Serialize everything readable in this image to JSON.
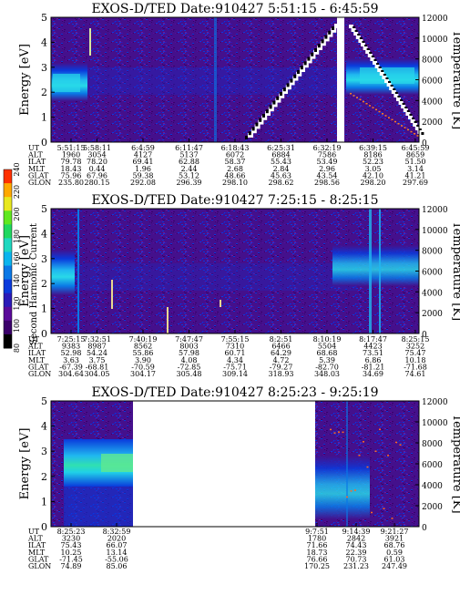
{
  "colorbar": {
    "label": "Second Harmonic Current",
    "ticks": [
      "80",
      "100",
      "120",
      "140",
      "160",
      "180",
      "200",
      "220",
      "240"
    ],
    "colors": [
      "#000000",
      "#3a006a",
      "#5a0a9a",
      "#2a1ab8",
      "#0a3adc",
      "#0a78e6",
      "#0ab4ee",
      "#20d8c0",
      "#20d860",
      "#60e820",
      "#e8e820",
      "#ffa800",
      "#ff3000"
    ]
  },
  "chart_data": [
    {
      "type": "heatmap",
      "title": "EXOS-D/TED   Date:910427  5:51:15 - 6:45:59",
      "ylabel": "Energy [eV]",
      "ylabel_right": "Temperature [K]",
      "yticks": [
        "0",
        "1",
        "2",
        "3",
        "4",
        "5"
      ],
      "ylim": [
        0,
        5
      ],
      "yticks_right": [
        "0",
        "2000",
        "4000",
        "6000",
        "8000",
        "10000",
        "12000"
      ],
      "ylim_right": [
        0,
        12000
      ],
      "row_labels": [
        "UT",
        "ALT",
        "ILAT",
        "MLT",
        "GLAT",
        "GLON"
      ],
      "columns": [
        {
          "UT": "5:51:15",
          "ALT": "1960",
          "ILAT": "79.78",
          "MLT": "18.43",
          "GLAT": "75.96",
          "GLON": "235.80"
        },
        {
          "UT": "5:58:11",
          "ALT": "3054",
          "ILAT": "78.20",
          "MLT": "0.44",
          "GLAT": "67.96",
          "GLON": "280.15"
        },
        {
          "UT": "6:4:59",
          "ALT": "4127",
          "ILAT": "69.41",
          "MLT": "1.96",
          "GLAT": "59.38",
          "GLON": "292.08"
        },
        {
          "UT": "6:11:47",
          "ALT": "5137",
          "ILAT": "62.88",
          "MLT": "2.44",
          "GLAT": "53.12",
          "GLON": "296.39"
        },
        {
          "UT": "6:18:43",
          "ALT": "6072",
          "ILAT": "58.37",
          "MLT": "2.68",
          "GLAT": "48.66",
          "GLON": "298.10"
        },
        {
          "UT": "6:25:31",
          "ALT": "6884",
          "ILAT": "55.43",
          "MLT": "2.84",
          "GLAT": "45.63",
          "GLON": "298.62"
        },
        {
          "UT": "6:32:19",
          "ALT": "7586",
          "ILAT": "53.49",
          "MLT": "2.96",
          "GLAT": "43.54",
          "GLON": "298.56"
        },
        {
          "UT": "6:39:15",
          "ALT": "8186",
          "ILAT": "52.23",
          "MLT": "3.05",
          "GLAT": "42.10",
          "GLON": "298.20"
        },
        {
          "UT": "6:45:59",
          "ALT": "8659",
          "ILAT": "51.50",
          "MLT": "3.14",
          "GLAT": "41.21",
          "GLON": "297.69"
        }
      ]
    },
    {
      "type": "heatmap",
      "title": "EXOS-D/TED   Date:910427  7:25:15 - 8:25:15",
      "ylabel": "Energy [eV]",
      "ylabel_right": "Temperature [K]",
      "yticks": [
        "0",
        "1",
        "2",
        "3",
        "4",
        "5"
      ],
      "ylim": [
        0,
        5
      ],
      "yticks_right": [
        "0",
        "2000",
        "4000",
        "6000",
        "8000",
        "10000",
        "12000"
      ],
      "ylim_right": [
        0,
        12000
      ],
      "row_labels": [
        "UT",
        "ALT",
        "ILAT",
        "MLT",
        "GLAT",
        "GLON"
      ],
      "columns": [
        {
          "UT": "7:25:15",
          "ALT": "9383",
          "ILAT": "52.98",
          "MLT": "3.63",
          "GLAT": "-67.39",
          "GLON": "304.64"
        },
        {
          "UT": "7:32:51",
          "ALT": "8987",
          "ILAT": "54.24",
          "MLT": "3.75",
          "GLAT": "-68.81",
          "GLON": "304.05"
        },
        {
          "UT": "7:40:19",
          "ALT": "8562",
          "ILAT": "55.86",
          "MLT": "3.90",
          "GLAT": "-70.59",
          "GLON": "304.17"
        },
        {
          "UT": "7:47:47",
          "ALT": "8003",
          "ILAT": "57.98",
          "MLT": "4.08",
          "GLAT": "-72.85",
          "GLON": "305.48"
        },
        {
          "UT": "7:55:15",
          "ALT": "7310",
          "ILAT": "60.71",
          "MLT": "4.34",
          "GLAT": "-75.71",
          "GLON": "309.14"
        },
        {
          "UT": "8:2:51",
          "ALT": "6466",
          "ILAT": "64.29",
          "MLT": "4.72",
          "GLAT": "-79.27",
          "GLON": "318.93"
        },
        {
          "UT": "8:10:19",
          "ALT": "5504",
          "ILAT": "68.68",
          "MLT": "5.39",
          "GLAT": "-82.70",
          "GLON": "348.03"
        },
        {
          "UT": "8:17:47",
          "ALT": "4423",
          "ILAT": "73.51",
          "MLT": "6.86",
          "GLAT": "-81.21",
          "GLON": "34.69"
        },
        {
          "UT": "8:25:15",
          "ALT": "3252",
          "ILAT": "75.47",
          "MLT": "10.18",
          "GLAT": "-71.68",
          "GLON": "74.61"
        }
      ]
    },
    {
      "type": "heatmap",
      "title": "EXOS-D/TED   Date:910427  8:25:23 - 9:25:19",
      "ylabel": "Energy [eV]",
      "ylabel_right": "Temperature [K]",
      "yticks": [
        "0",
        "1",
        "2",
        "3",
        "4",
        "5"
      ],
      "ylim": [
        0,
        5
      ],
      "yticks_right": [
        "0",
        "2000",
        "4000",
        "6000",
        "8000",
        "10000",
        "12000"
      ],
      "ylim_right": [
        0,
        12000
      ],
      "row_labels": [
        "UT",
        "ALT",
        "ILAT",
        "MLT",
        "GLAT",
        "GLON"
      ],
      "columns": [
        {
          "UT": "8:25:23",
          "ALT": "3230",
          "ILAT": "75.43",
          "MLT": "10.25",
          "GLAT": "-71.45",
          "GLON": "74.89"
        },
        {
          "UT": "8:32:59",
          "ALT": "2020",
          "ILAT": "66.07",
          "MLT": "13.14",
          "GLAT": "-55.06",
          "GLON": "85.06"
        },
        {
          "UT": "9:7:51",
          "ALT": "1780",
          "ILAT": "71.66",
          "MLT": "18.73",
          "GLAT": "76.66",
          "GLON": "170.25"
        },
        {
          "UT": "9:14:39",
          "ALT": "2842",
          "ILAT": "74.43",
          "MLT": "22.39",
          "GLAT": "70.73",
          "GLON": "231.23"
        },
        {
          "UT": "9:21:27",
          "ALT": "3921",
          "ILAT": "68.76",
          "MLT": "0.59",
          "GLAT": "61.03",
          "GLON": "247.49"
        }
      ]
    }
  ]
}
